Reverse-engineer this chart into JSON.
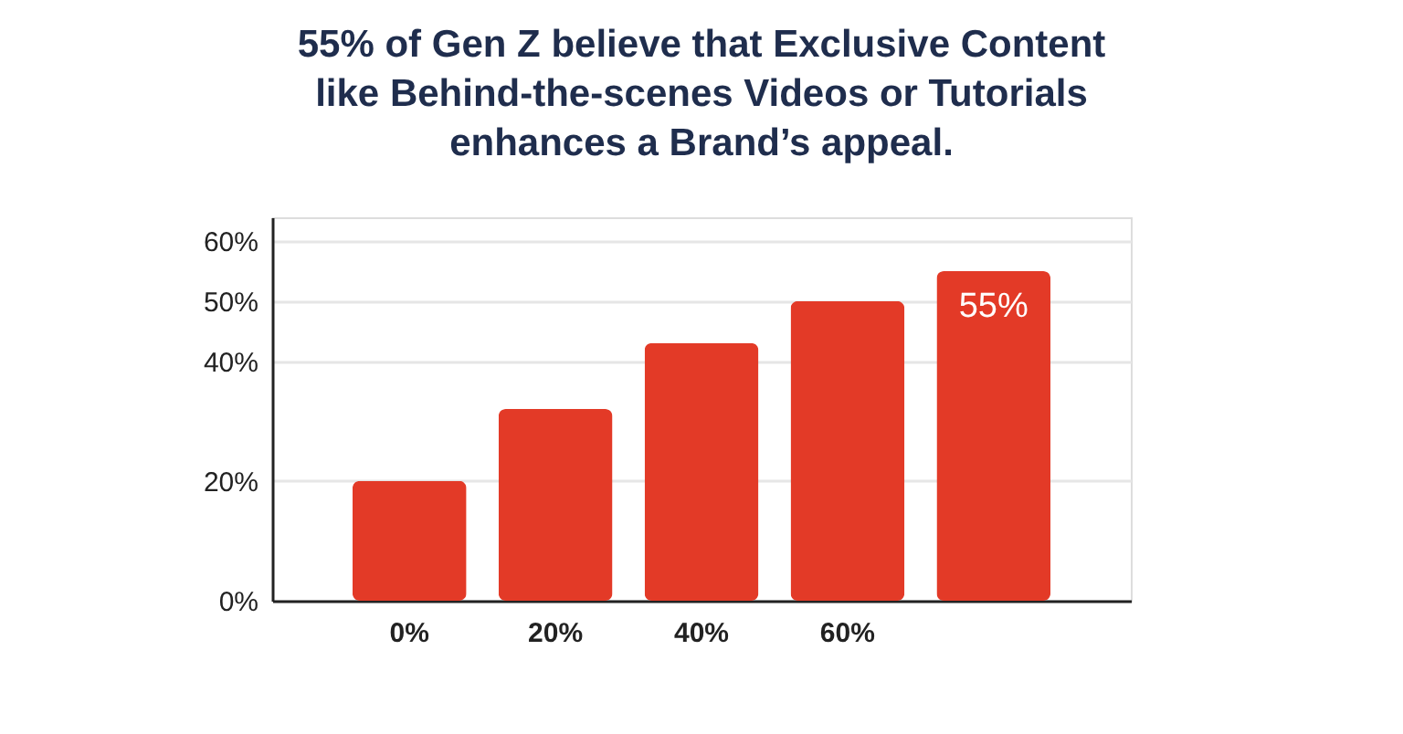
{
  "chart_data": {
    "type": "bar",
    "title": [
      "55% of Gen Z believe that Exclusive Content",
      "like Behind-the-scenes Videos or Tutorials",
      "enhances a Brand’s appeal."
    ],
    "categories": [
      "0%",
      "20%",
      "40%",
      "60%",
      null
    ],
    "values": [
      20,
      32,
      43,
      50,
      55
    ],
    "value_labels": [
      null,
      null,
      null,
      null,
      "55%"
    ],
    "color": "#e33a27",
    "ylim": [
      0,
      64
    ],
    "yticks": [
      {
        "value": 0,
        "label": "0%"
      },
      {
        "value": 20,
        "label": "20%"
      },
      {
        "value": 40,
        "label": "40%"
      },
      {
        "value": 50,
        "label": "50%"
      },
      {
        "value": 60,
        "label": "60%"
      }
    ],
    "grid": "y"
  }
}
